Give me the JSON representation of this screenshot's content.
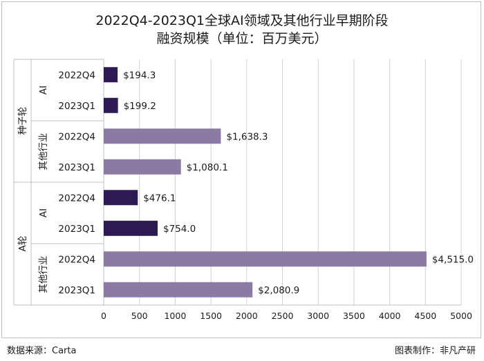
{
  "title_line1": "2022Q4-2023Q1全球AI领域及其他行业早期阶段",
  "title_line2": "融资规模（单位：百万美元）",
  "footer": {
    "source": "数据来源：Carta",
    "credit": "图表制作：非凡产研"
  },
  "colors": {
    "ai": "#2e1a53",
    "other": "#8b7aa3",
    "grid": "#d0d0d0",
    "axis": "#bfbfbf"
  },
  "chart_data": {
    "type": "bar",
    "orientation": "horizontal",
    "xlim": [
      0,
      5000
    ],
    "xticks": [
      "0",
      "500",
      "1000",
      "1500",
      "2000",
      "2500",
      "3000",
      "3500",
      "4000",
      "4500",
      "5000"
    ],
    "tick_values": [
      0,
      500,
      1000,
      1500,
      2000,
      2500,
      3000,
      3500,
      4000,
      4500,
      5000
    ],
    "grid": "vertical",
    "groups": [
      {
        "name": "种子轮",
        "subgroups": [
          {
            "name": "AI",
            "bars": [
              {
                "label": "2022Q4",
                "value": 194.3,
                "text": "$194.3"
              },
              {
                "label": "2023Q1",
                "value": 199.2,
                "text": "$199.2"
              }
            ]
          },
          {
            "name": "其他行业",
            "bars": [
              {
                "label": "2022Q4",
                "value": 1638.3,
                "text": "$1,638.3"
              },
              {
                "label": "2023Q1",
                "value": 1080.1,
                "text": "$1,080.1"
              }
            ]
          }
        ]
      },
      {
        "name": "A轮",
        "subgroups": [
          {
            "name": "AI",
            "bars": [
              {
                "label": "2022Q4",
                "value": 476.1,
                "text": "$476.1"
              },
              {
                "label": "2023Q1",
                "value": 754.0,
                "text": "$754.0"
              }
            ]
          },
          {
            "name": "其他行业",
            "bars": [
              {
                "label": "2022Q4",
                "value": 4515.0,
                "text": "$4,515.0"
              },
              {
                "label": "2023Q1",
                "value": 2080.9,
                "text": "$2,080.9"
              }
            ]
          }
        ]
      }
    ]
  }
}
